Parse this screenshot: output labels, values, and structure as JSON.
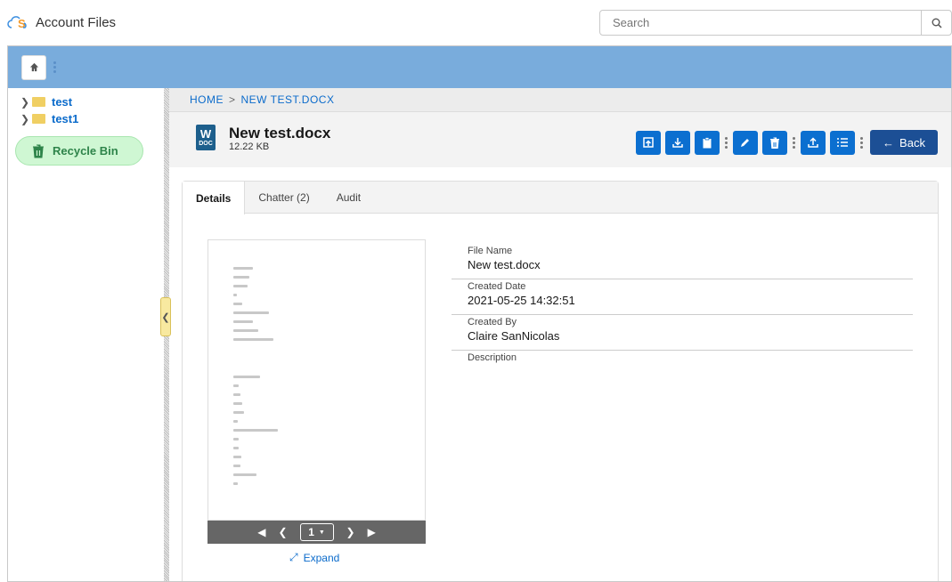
{
  "app": {
    "title": "Account Files"
  },
  "search": {
    "placeholder": "Search"
  },
  "sidebar": {
    "folders": [
      {
        "label": "test"
      },
      {
        "label": "test1"
      }
    ],
    "recycle_bin": "Recycle Bin"
  },
  "breadcrumb": {
    "home": "HOME",
    "sep": ">",
    "current": "NEW TEST.DOCX"
  },
  "file": {
    "name": "New test.docx",
    "size": "12.22 KB",
    "type_label": "DOC"
  },
  "actions": {
    "back_label": "Back",
    "icons": [
      "open-icon",
      "download-icon",
      "clipboard-icon",
      "edit-icon",
      "delete-icon",
      "upload-icon",
      "list-icon"
    ]
  },
  "tabs": [
    {
      "label": "Details"
    },
    {
      "label": "Chatter (2)"
    },
    {
      "label": "Audit"
    }
  ],
  "preview": {
    "page": "1",
    "expand_label": "Expand"
  },
  "details": [
    {
      "label": "File Name",
      "value": "New test.docx"
    },
    {
      "label": "Created Date",
      "value": "2021-05-25 14:32:51"
    },
    {
      "label": "Created By",
      "value": "Claire SanNicolas"
    },
    {
      "label": "Description",
      "value": ""
    }
  ],
  "colors": {
    "accent": "#0b6fd0",
    "banner": "#79acdc",
    "back": "#1c4f95"
  }
}
